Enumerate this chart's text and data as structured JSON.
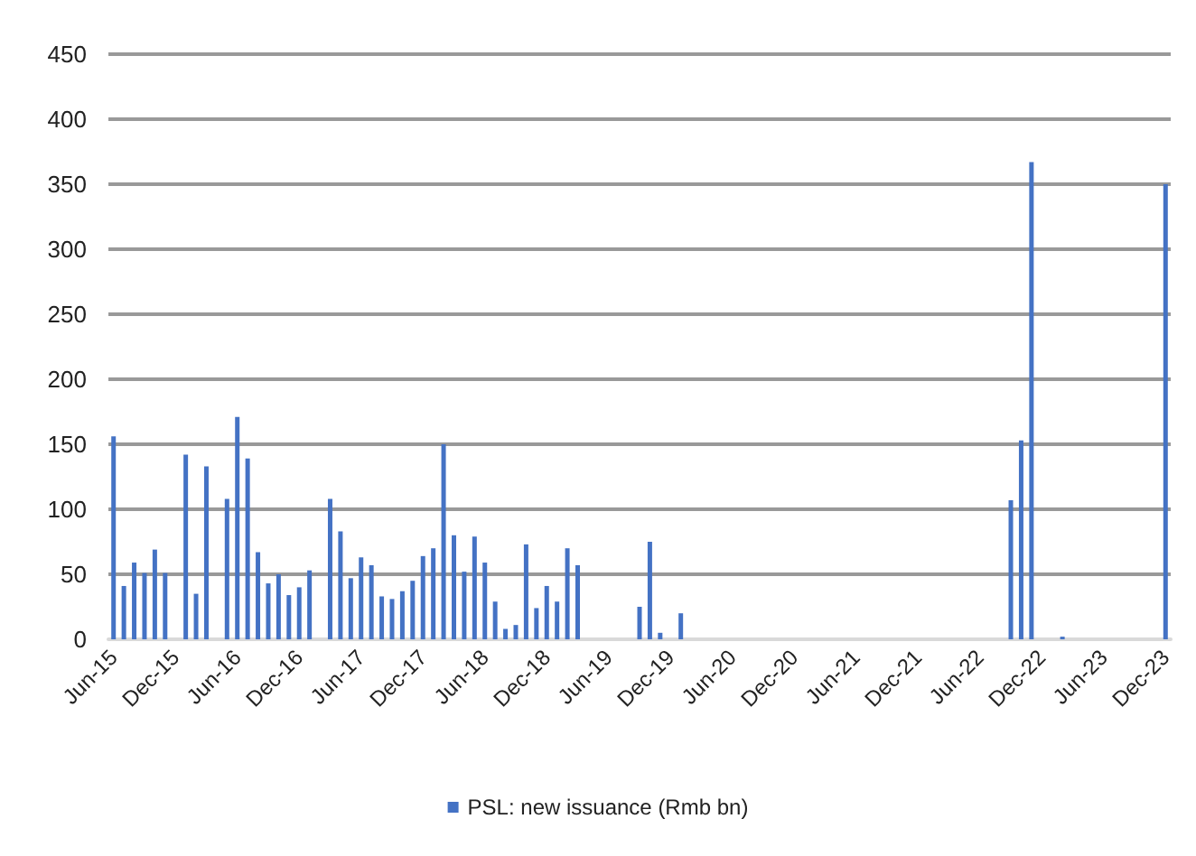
{
  "chart_data": {
    "type": "bar",
    "categories": [
      "Jun-15",
      null,
      null,
      null,
      null,
      null,
      "Dec-15",
      null,
      null,
      null,
      null,
      null,
      "Jun-16",
      null,
      null,
      null,
      null,
      null,
      "Dec-16",
      null,
      null,
      null,
      null,
      null,
      "Jun-17",
      null,
      null,
      null,
      null,
      null,
      "Dec-17",
      null,
      null,
      null,
      null,
      null,
      "Jun-18",
      null,
      null,
      null,
      null,
      null,
      "Dec-18",
      null,
      null,
      null,
      null,
      null,
      "Jun-19",
      null,
      null,
      null,
      null,
      null,
      "Dec-19",
      null,
      null,
      null,
      null,
      null,
      "Jun-20",
      null,
      null,
      null,
      null,
      null,
      "Dec-20",
      null,
      null,
      null,
      null,
      null,
      "Jun-21",
      null,
      null,
      null,
      null,
      null,
      "Dec-21",
      null,
      null,
      null,
      null,
      null,
      "Jun-22",
      null,
      null,
      null,
      null,
      null,
      "Dec-22",
      null,
      null,
      null,
      null,
      null,
      "Jun-23",
      null,
      null,
      null,
      null,
      null,
      "Dec-23"
    ],
    "series": [
      {
        "name": "PSL: new issuance (Rmb bn)",
        "color": "#4472c4",
        "values": [
          156,
          41,
          59,
          51,
          69,
          51,
          null,
          142,
          35,
          133,
          null,
          108,
          171,
          139,
          67,
          43,
          50,
          34,
          40,
          53,
          null,
          108,
          83,
          47,
          63,
          57,
          33,
          31,
          37,
          45,
          64,
          70,
          150,
          80,
          52,
          79,
          59,
          29,
          8,
          11,
          73,
          24,
          41,
          29,
          70,
          57,
          null,
          null,
          null,
          null,
          null,
          25,
          75,
          5,
          null,
          20,
          null,
          null,
          null,
          null,
          null,
          null,
          null,
          null,
          null,
          null,
          null,
          null,
          null,
          null,
          null,
          null,
          null,
          null,
          null,
          null,
          null,
          null,
          null,
          null,
          null,
          null,
          null,
          null,
          null,
          null,
          null,
          107,
          153,
          367,
          null,
          null,
          2,
          null,
          null,
          null,
          null,
          null,
          null,
          null,
          null,
          null,
          350
        ]
      }
    ],
    "ylim": [
      0,
      450
    ],
    "yticks": [
      0,
      50,
      100,
      150,
      200,
      250,
      300,
      350,
      400,
      450
    ],
    "grid": "y",
    "legend": "bottom"
  }
}
